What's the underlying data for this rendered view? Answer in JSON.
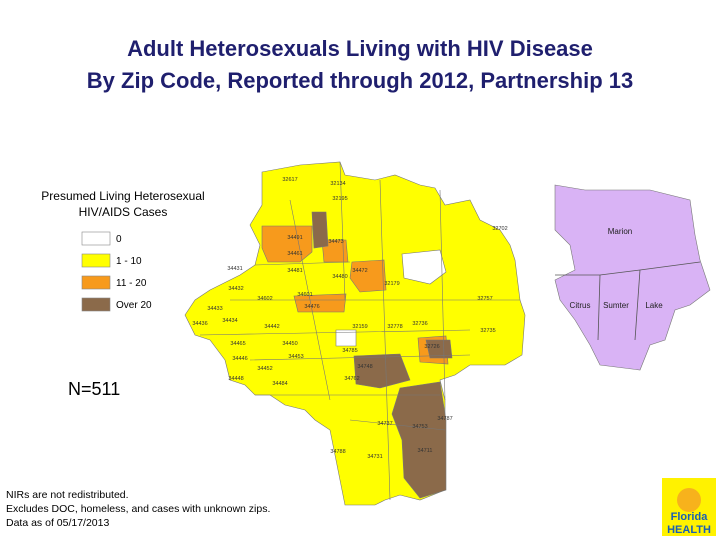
{
  "header": {
    "title_lines": [
      "Adult Heterosexuals Living with HIV Disease",
      "By Zip Code, Reported through 2012, Partnership 13"
    ]
  },
  "legend": {
    "title_lines": [
      "Presumed Living Heterosexual",
      "HIV/AIDS Cases"
    ],
    "items": [
      {
        "label": "0",
        "color": "#ffffff"
      },
      {
        "label": "1 - 10",
        "color": "#ffff00"
      },
      {
        "label": "11 - 20",
        "color": "#f79a1c"
      },
      {
        "label": "Over 20",
        "color": "#8b6a4a"
      }
    ]
  },
  "count": "N=511",
  "notes": [
    "NIRs are not redistributed.",
    "Excludes DOC, homeless, and cases with unknown zips.",
    "Data as of 05/17/2013"
  ],
  "inset_map": {
    "counties": [
      "Marion",
      "Citrus",
      "Sumter",
      "Lake"
    ]
  },
  "zip_labels": [
    "32617",
    "32134",
    "34491",
    "34472",
    "34473",
    "34481",
    "34476",
    "34480",
    "34431",
    "34432",
    "34433",
    "34434",
    "34436",
    "34442",
    "34465",
    "34461",
    "34446",
    "34448",
    "34450",
    "34452",
    "34453",
    "34484",
    "34785",
    "34748",
    "32159",
    "32778",
    "32726",
    "32757",
    "32736",
    "32735",
    "34711",
    "34737",
    "34753",
    "34787",
    "34788",
    "34731",
    "34762",
    "32179",
    "32195",
    "32702",
    "34601",
    "34602"
  ],
  "logo": {
    "line1": "Florida",
    "line2": "HEALTH"
  }
}
